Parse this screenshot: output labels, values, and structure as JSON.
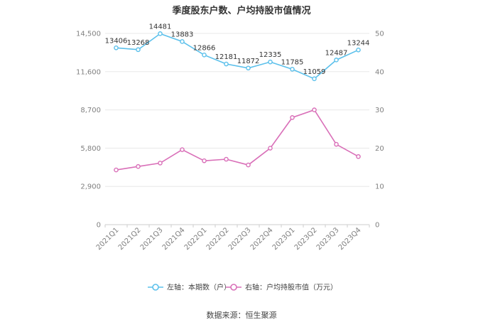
{
  "chart_data": {
    "type": "line",
    "title": "季度股东户数、户均持股市值情况",
    "categories": [
      "2021Q1",
      "2021Q2",
      "2021Q3",
      "2021Q4",
      "2022Q1",
      "2022Q2",
      "2022Q3",
      "2022Q4",
      "2023Q1",
      "2023Q2",
      "2023Q3",
      "2023Q4"
    ],
    "y_left": {
      "min": 0,
      "max": 14500,
      "ticks": [
        0,
        2900,
        5800,
        8700,
        11600,
        14500
      ],
      "tick_labels": [
        "0",
        "2,900",
        "5,800",
        "8,700",
        "11,600",
        "14,500"
      ]
    },
    "y_right": {
      "min": 0,
      "max": 50,
      "ticks": [
        0,
        10,
        20,
        30,
        40,
        50
      ],
      "tick_labels": [
        "0",
        "10",
        "20",
        "30",
        "40",
        "50"
      ]
    },
    "series": [
      {
        "name": "左轴：本期数（户）",
        "axis": "left",
        "color": "#5bc0eb",
        "values": [
          13406,
          13268,
          14481,
          13883,
          12866,
          12181,
          11872,
          12335,
          11785,
          11059,
          12487,
          13244
        ],
        "labels": [
          "13406",
          "13268",
          "14481",
          "13883",
          "12866",
          "12181",
          "11872",
          "12335",
          "11785",
          "11059",
          "12487",
          "13244"
        ]
      },
      {
        "name": "右轴：户均持股市值（万元）",
        "axis": "right",
        "color": "#d96fb8",
        "values": [
          14.3,
          15.2,
          16.1,
          19.6,
          16.7,
          17.1,
          15.6,
          20.0,
          28.0,
          30.0,
          21.0,
          17.8
        ]
      }
    ],
    "legend_position": "bottom",
    "grid": true
  },
  "source": "数据来源：恒生聚源"
}
